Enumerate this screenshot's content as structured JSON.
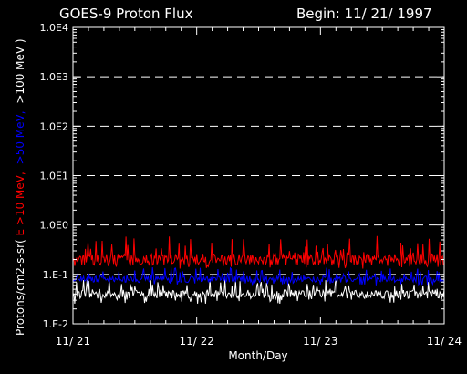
{
  "chart_data": {
    "type": "line",
    "title": "GOES-9 Proton Flux",
    "subtitle": "Begin: 11/ 21/ 1997",
    "xlabel": "Month/Day",
    "ylabel_parts": {
      "prefix": "Protons/cm2-s-sr(",
      "e10": "E >10 MeV,",
      "e50": ">50 MeV,",
      "e100": ">100 MeV )"
    },
    "y_scale": "log",
    "ylim": [
      0.01,
      10000
    ],
    "y_ticks": [
      "1.E-2",
      "1.E-1",
      "1.0E0",
      "1.0E1",
      "1.0E2",
      "1.0E3",
      "1.0E4"
    ],
    "y_tick_values": [
      0.01,
      0.1,
      1,
      10,
      100,
      1000,
      10000
    ],
    "xlim": [
      0,
      3
    ],
    "x_ticks": [
      "11/ 21",
      "11/ 22",
      "11/ 23",
      "11/ 24"
    ],
    "x_tick_values": [
      0,
      1,
      2,
      3
    ],
    "grid": "horizontal dashed at decades",
    "series": [
      {
        "name": "E >10 MeV",
        "color": "#ff0000",
        "band": [
          0.13,
          0.6
        ],
        "typical": 0.2
      },
      {
        "name": ">50 MeV",
        "color": "#0000ff",
        "band": [
          0.06,
          0.14
        ],
        "typical": 0.08
      },
      {
        "name": ">100 MeV",
        "color": "#ffffff",
        "band": [
          0.025,
          0.08
        ],
        "typical": 0.04
      }
    ]
  }
}
